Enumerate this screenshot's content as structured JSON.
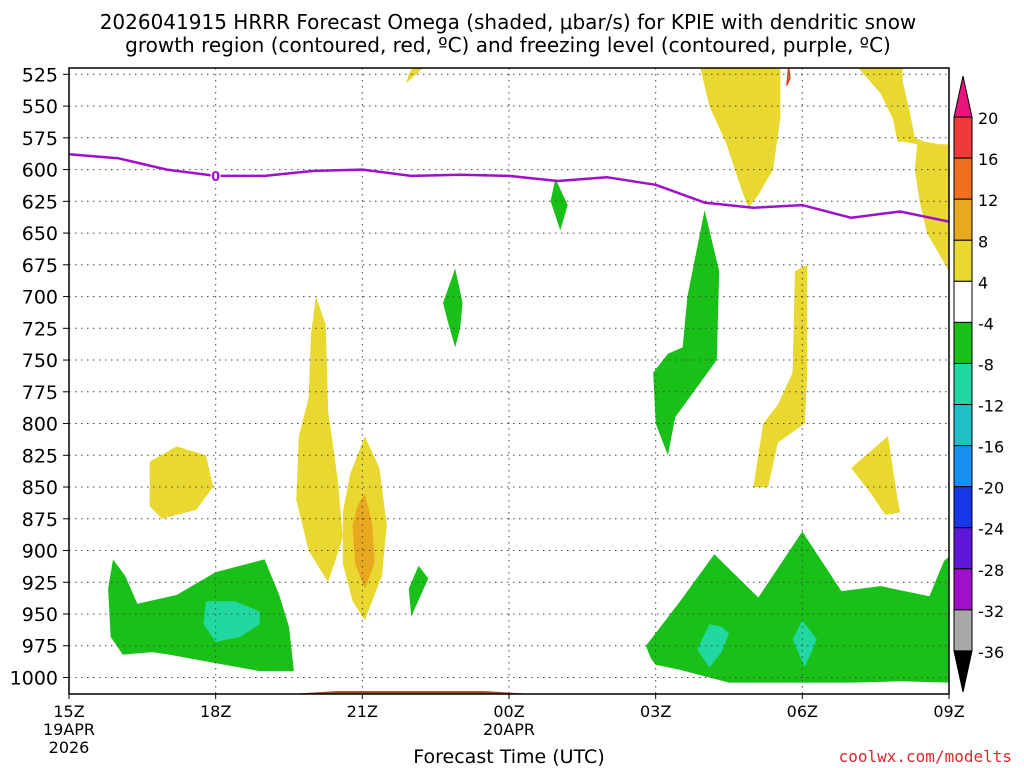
{
  "chart_data": {
    "type": "heatmap",
    "title_line1": "2026041915 HRRR Forecast Omega (shaded, μbar/s) for KPIE with dendritic snow",
    "title_line2": "growth region (contoured, red, ºC) and freezing level (contoured, purple, ºC)",
    "xlabel": "Forecast Time (UTC)",
    "watermark": "coolwx.com/modelts",
    "x_ticks": [
      {
        "hour": 0,
        "label": "15Z"
      },
      {
        "hour": 3,
        "label": "18Z"
      },
      {
        "hour": 6,
        "label": "21Z"
      },
      {
        "hour": 9,
        "label": "00Z"
      },
      {
        "hour": 12,
        "label": "03Z"
      },
      {
        "hour": 15,
        "label": "06Z"
      },
      {
        "hour": 18,
        "label": "09Z"
      }
    ],
    "date_labels": [
      {
        "hour": 0,
        "lines": [
          "19APR",
          "2026"
        ]
      },
      {
        "hour": 9,
        "lines": [
          "20APR"
        ]
      }
    ],
    "xlim": [
      0,
      18
    ],
    "y_levels": [
      525,
      550,
      575,
      600,
      625,
      650,
      675,
      700,
      725,
      750,
      775,
      800,
      825,
      850,
      875,
      900,
      925,
      950,
      975,
      1000
    ],
    "ylim": [
      520,
      1013
    ],
    "colorbar": {
      "labels": [
        "20",
        "16",
        "12",
        "8",
        "4",
        "-4",
        "-8",
        "-12",
        "-16",
        "-20",
        "-24",
        "-28",
        "-32",
        "-36"
      ],
      "colors": [
        "#e8157d",
        "#f03a3a",
        "#f07020",
        "#e8a820",
        "#e8d830",
        "#ffffff",
        "#18c018",
        "#20d8a0",
        "#20c0c8",
        "#1890f0",
        "#1838e8",
        "#6018d8",
        "#a010c8",
        "#a8a8a8",
        "#000000"
      ]
    },
    "freezing_level": {
      "label": "0",
      "points": [
        [
          0,
          588
        ],
        [
          1,
          591
        ],
        [
          2,
          600
        ],
        [
          3,
          605
        ],
        [
          4,
          605
        ],
        [
          5,
          601
        ],
        [
          6,
          600
        ],
        [
          7,
          605
        ],
        [
          8,
          604
        ],
        [
          9,
          605
        ],
        [
          10,
          609
        ],
        [
          11,
          606
        ],
        [
          12,
          612
        ],
        [
          13,
          626
        ],
        [
          14,
          630
        ],
        [
          15,
          628
        ],
        [
          16,
          638
        ],
        [
          17,
          633
        ],
        [
          18,
          641
        ]
      ]
    },
    "terrain": {
      "color": "#a0522d",
      "surface_pressure": 1013
    },
    "omega_regions": [
      {
        "value": 4,
        "color": "#e8d830",
        "pts": [
          [
            6.95,
            525
          ],
          [
            7.05,
            518
          ],
          [
            7.3,
            518
          ],
          [
            6.9,
            532
          ]
        ]
      },
      {
        "value": 4,
        "color": "#e8d830",
        "pts": [
          [
            1.65,
            830
          ],
          [
            2.2,
            818
          ],
          [
            2.8,
            825
          ],
          [
            2.95,
            850
          ],
          [
            2.6,
            868
          ],
          [
            1.9,
            875
          ],
          [
            1.65,
            865
          ]
        ]
      },
      {
        "value": 4,
        "color": "#e8d830",
        "pts": [
          [
            5.05,
            700
          ],
          [
            5.25,
            722
          ],
          [
            5.3,
            790
          ],
          [
            5.5,
            845
          ],
          [
            5.6,
            890
          ],
          [
            5.3,
            925
          ],
          [
            4.9,
            900
          ],
          [
            4.65,
            860
          ],
          [
            4.7,
            810
          ],
          [
            4.9,
            780
          ],
          [
            4.95,
            730
          ]
        ]
      },
      {
        "value": 4,
        "color": "#e8d830",
        "pts": [
          [
            6.05,
            810
          ],
          [
            6.35,
            835
          ],
          [
            6.5,
            880
          ],
          [
            6.4,
            920
          ],
          [
            6.05,
            955
          ],
          [
            5.8,
            940
          ],
          [
            5.6,
            910
          ],
          [
            5.6,
            870
          ],
          [
            5.75,
            840
          ]
        ]
      },
      {
        "value": 8,
        "color": "#e8a820",
        "pts": [
          [
            6.05,
            855
          ],
          [
            6.2,
            878
          ],
          [
            6.25,
            910
          ],
          [
            6.05,
            930
          ],
          [
            5.85,
            910
          ],
          [
            5.8,
            880
          ],
          [
            5.9,
            865
          ]
        ]
      },
      {
        "value": 4,
        "color": "#e8d830",
        "pts": [
          [
            12.9,
            518
          ],
          [
            13.6,
            518
          ],
          [
            14.2,
            518
          ],
          [
            14.55,
            518
          ],
          [
            14.55,
            560
          ],
          [
            14.4,
            600
          ],
          [
            14.1,
            620
          ],
          [
            13.9,
            630
          ],
          [
            13.75,
            615
          ],
          [
            13.45,
            580
          ],
          [
            13.1,
            550
          ]
        ]
      },
      {
        "value": 4,
        "color": "#e8d830",
        "pts": [
          [
            14.85,
            680
          ],
          [
            15.1,
            675
          ],
          [
            15.1,
            760
          ],
          [
            15.05,
            800
          ],
          [
            14.5,
            815
          ],
          [
            14.3,
            850
          ],
          [
            14.0,
            850
          ],
          [
            14.2,
            800
          ],
          [
            14.5,
            785
          ],
          [
            14.8,
            760
          ]
        ]
      },
      {
        "value": 4,
        "color": "#e8d830",
        "pts": [
          [
            16.9,
            805
          ],
          [
            16.75,
            810
          ],
          [
            16.95,
            860
          ],
          [
            17.0,
            870
          ],
          [
            16.7,
            872
          ],
          [
            16.4,
            855
          ],
          [
            16.0,
            835
          ],
          [
            16.6,
            815
          ]
        ]
      },
      {
        "value": 4,
        "color": "#e8d830",
        "pts": [
          [
            16.1,
            518
          ],
          [
            17.05,
            518
          ],
          [
            17.05,
            530
          ],
          [
            17.2,
            555
          ],
          [
            17.3,
            575
          ],
          [
            17.5,
            578
          ],
          [
            17.8,
            580
          ],
          [
            18,
            580
          ],
          [
            18,
            680
          ],
          [
            17.55,
            650
          ],
          [
            17.4,
            625
          ],
          [
            17.3,
            600
          ],
          [
            17.35,
            580
          ],
          [
            17.05,
            578
          ],
          [
            16.95,
            578
          ],
          [
            16.85,
            560
          ],
          [
            16.6,
            540
          ]
        ]
      },
      {
        "value": -4,
        "color": "#18c018",
        "pts": [
          [
            0.9,
            907
          ],
          [
            1.15,
            920
          ],
          [
            1.4,
            942
          ],
          [
            2.2,
            935
          ],
          [
            3.0,
            917
          ],
          [
            4.0,
            907
          ],
          [
            4.3,
            935
          ],
          [
            4.5,
            960
          ],
          [
            4.6,
            995
          ],
          [
            3.9,
            995
          ],
          [
            2.9,
            988
          ],
          [
            2.05,
            982
          ],
          [
            1.7,
            980
          ],
          [
            1.1,
            982
          ],
          [
            0.85,
            968
          ],
          [
            0.8,
            930
          ]
        ]
      },
      {
        "value": -8,
        "color": "#20d8a0",
        "pts": [
          [
            2.8,
            940
          ],
          [
            3.4,
            940
          ],
          [
            3.9,
            948
          ],
          [
            3.9,
            958
          ],
          [
            3.5,
            968
          ],
          [
            3.0,
            972
          ],
          [
            2.75,
            958
          ]
        ]
      },
      {
        "value": -4,
        "color": "#18c018",
        "pts": [
          [
            7.9,
            678
          ],
          [
            8.05,
            705
          ],
          [
            8.0,
            725
          ],
          [
            7.9,
            740
          ],
          [
            7.75,
            720
          ],
          [
            7.65,
            705
          ]
        ]
      },
      {
        "value": -4,
        "color": "#18c018",
        "pts": [
          [
            7.15,
            912
          ],
          [
            7.35,
            922
          ],
          [
            7.0,
            952
          ],
          [
            6.95,
            930
          ]
        ]
      },
      {
        "value": -4,
        "color": "#18c018",
        "pts": [
          [
            9.95,
            607
          ],
          [
            10.2,
            628
          ],
          [
            10.05,
            648
          ],
          [
            9.85,
            625
          ]
        ]
      },
      {
        "value": -4,
        "color": "#18c018",
        "pts": [
          [
            13.0,
            632
          ],
          [
            13.3,
            680
          ],
          [
            13.25,
            750
          ],
          [
            12.4,
            795
          ],
          [
            12.25,
            825
          ],
          [
            12.0,
            800
          ],
          [
            11.95,
            760
          ],
          [
            12.25,
            745
          ],
          [
            12.55,
            740
          ],
          [
            12.65,
            700
          ]
        ]
      },
      {
        "value": -4,
        "color": "#18c018",
        "pts": [
          [
            11.8,
            975
          ],
          [
            12.0,
            965
          ],
          [
            12.5,
            940
          ],
          [
            13.2,
            903
          ],
          [
            14.1,
            937
          ],
          [
            15.0,
            885
          ],
          [
            15.8,
            932
          ],
          [
            16.6,
            928
          ],
          [
            17.6,
            936
          ],
          [
            17.9,
            908
          ],
          [
            18,
            905
          ],
          [
            18,
            1004
          ],
          [
            17.0,
            1003
          ],
          [
            16.0,
            1004
          ],
          [
            15.0,
            1004
          ],
          [
            14.0,
            1004
          ],
          [
            13.5,
            1004
          ],
          [
            12.5,
            994
          ],
          [
            12.0,
            990
          ],
          [
            11.9,
            985
          ]
        ]
      },
      {
        "value": -8,
        "color": "#20d8a0",
        "pts": [
          [
            13.1,
            958
          ],
          [
            13.35,
            960
          ],
          [
            13.5,
            965
          ],
          [
            13.35,
            980
          ],
          [
            13.1,
            992
          ],
          [
            12.85,
            978
          ]
        ]
      },
      {
        "value": -8,
        "color": "#20d8a0",
        "pts": [
          [
            15.0,
            955
          ],
          [
            15.3,
            970
          ],
          [
            15.05,
            992
          ],
          [
            14.8,
            970
          ]
        ]
      }
    ],
    "dgz_regions": [
      {
        "pts": [
          [
            14.72,
            518
          ],
          [
            14.75,
            528
          ],
          [
            14.68,
            534
          ]
        ]
      }
    ]
  }
}
